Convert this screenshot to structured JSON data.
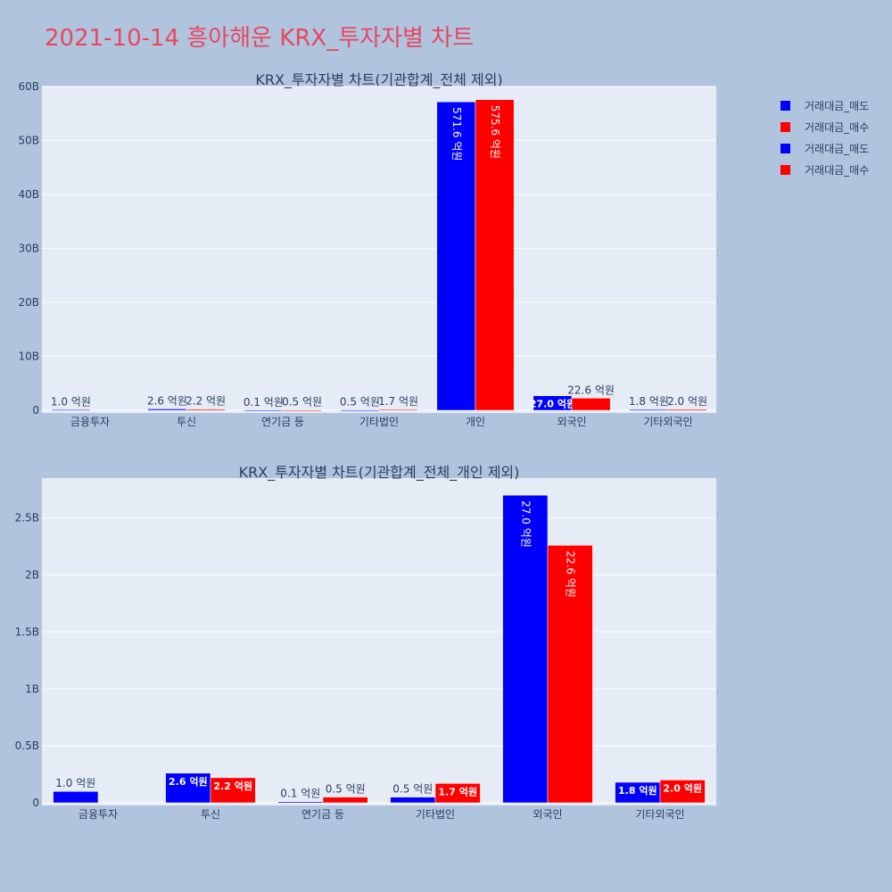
{
  "page": {
    "title": "2021-10-14 흥아해운 KRX_투자자별 차트"
  },
  "legend": [
    {
      "label": "거래대금_매도",
      "color": "#0000ff"
    },
    {
      "label": "거래대금_매수",
      "color": "#ff0000"
    },
    {
      "label": "거래대금_매도",
      "color": "#0000ff"
    },
    {
      "label": "거래대금_매수",
      "color": "#ff0000"
    }
  ],
  "chart_data": [
    {
      "type": "bar",
      "title": "KRX_투자자별 차트(기관합계_전체 제외)",
      "categories": [
        "금융투자",
        "투신",
        "연기금 등",
        "기타법인",
        "개인",
        "외국인",
        "기타외국인"
      ],
      "ylim": [
        0,
        60000000000
      ],
      "yticks": [
        0,
        10000000000,
        20000000000,
        30000000000,
        40000000000,
        50000000000,
        60000000000
      ],
      "ytick_labels": [
        "0",
        "10B",
        "20B",
        "30B",
        "40B",
        "50B",
        "60B"
      ],
      "series": [
        {
          "name": "거래대금_매도",
          "color": "#0000ff",
          "values": [
            100000000,
            260000000,
            10000000,
            50000000,
            57160000000,
            2700000000,
            180000000
          ],
          "labels": [
            "1.0 억원",
            "2.6 억원",
            "0.1 억원",
            "0.5 억원",
            "571.6 억원",
            "27.0 억원",
            "1.8 억원"
          ]
        },
        {
          "name": "거래대금_매수",
          "color": "#ff0000",
          "values": [
            0,
            220000000,
            50000000,
            170000000,
            57560000000,
            2260000000,
            200000000
          ],
          "labels": [
            "",
            "2.2 억원",
            "0.5 억원",
            "1.7 억원",
            "575.6 억원",
            "22.6 억원",
            "2.0 억원"
          ]
        }
      ]
    },
    {
      "type": "bar",
      "title": "KRX_투자자별 차트(기관합계_전체_개인 제외)",
      "categories": [
        "금융투자",
        "투신",
        "연기금 등",
        "기타법인",
        "외국인",
        "기타외국인"
      ],
      "ylim": [
        0,
        2850000000
      ],
      "yticks": [
        0,
        500000000,
        1000000000,
        1500000000,
        2000000000,
        2500000000
      ],
      "ytick_labels": [
        "0",
        "0.5B",
        "1B",
        "1.5B",
        "2B",
        "2.5B"
      ],
      "series": [
        {
          "name": "거래대금_매도",
          "color": "#0000ff",
          "values": [
            100000000,
            260000000,
            10000000,
            50000000,
            2700000000,
            180000000
          ],
          "labels": [
            "1.0 억원",
            "2.6 억원",
            "0.1 억원",
            "0.5 억원",
            "27.0 억원",
            "1.8 억원"
          ]
        },
        {
          "name": "거래대금_매수",
          "color": "#ff0000",
          "values": [
            0,
            220000000,
            50000000,
            170000000,
            2260000000,
            200000000
          ],
          "labels": [
            "",
            "2.2 억원",
            "0.5 억원",
            "1.7 억원",
            "22.6 억원",
            "2.0 억원"
          ]
        }
      ]
    }
  ]
}
